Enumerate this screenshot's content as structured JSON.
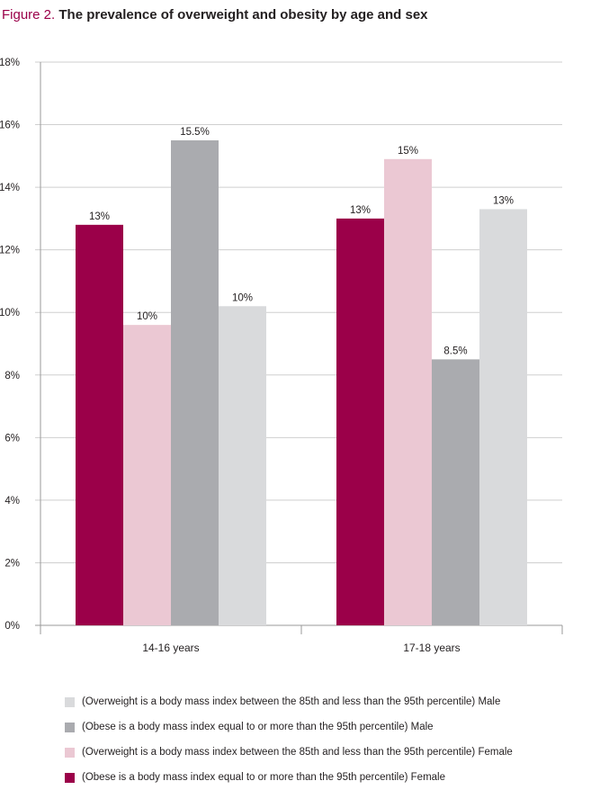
{
  "title_prefix": "Figure 2.",
  "title_text": "The prevalence of overweight and obesity by age and sex",
  "chart_data": {
    "type": "bar",
    "categories": [
      "14-16 years",
      "17-18 years"
    ],
    "y_ticks": [
      "0%",
      "2%",
      "4%",
      "6%",
      "8%",
      "10%",
      "12%",
      "14%",
      "16%",
      "18%"
    ],
    "ylim": [
      0,
      18
    ],
    "grid": true,
    "legend_position": "bottom",
    "series": [
      {
        "name": "(Obese is a body mass index equal to or more than the 95th percentile) Female",
        "color": "#9b0049",
        "values": [
          12.8,
          13.0
        ],
        "labels": [
          "13%",
          "13%"
        ]
      },
      {
        "name": "(Overweight is a body mass index between the 85th and less than the 95th percentile) Female",
        "color": "#ebc8d3",
        "values": [
          9.6,
          14.9
        ],
        "labels": [
          "10%",
          "15%"
        ]
      },
      {
        "name": "(Obese is a body mass index equal to or more than the 95th percentile) Male",
        "color": "#aaabaf",
        "values": [
          15.5,
          8.5
        ],
        "labels": [
          "15.5%",
          "8.5%"
        ]
      },
      {
        "name": "(Overweight is a body mass index between the 85th and less than the 95th percentile) Male",
        "color": "#d9dadc",
        "values": [
          10.2,
          13.3
        ],
        "labels": [
          "10%",
          "13%"
        ]
      }
    ],
    "legend_order": [
      3,
      2,
      1,
      0
    ]
  }
}
